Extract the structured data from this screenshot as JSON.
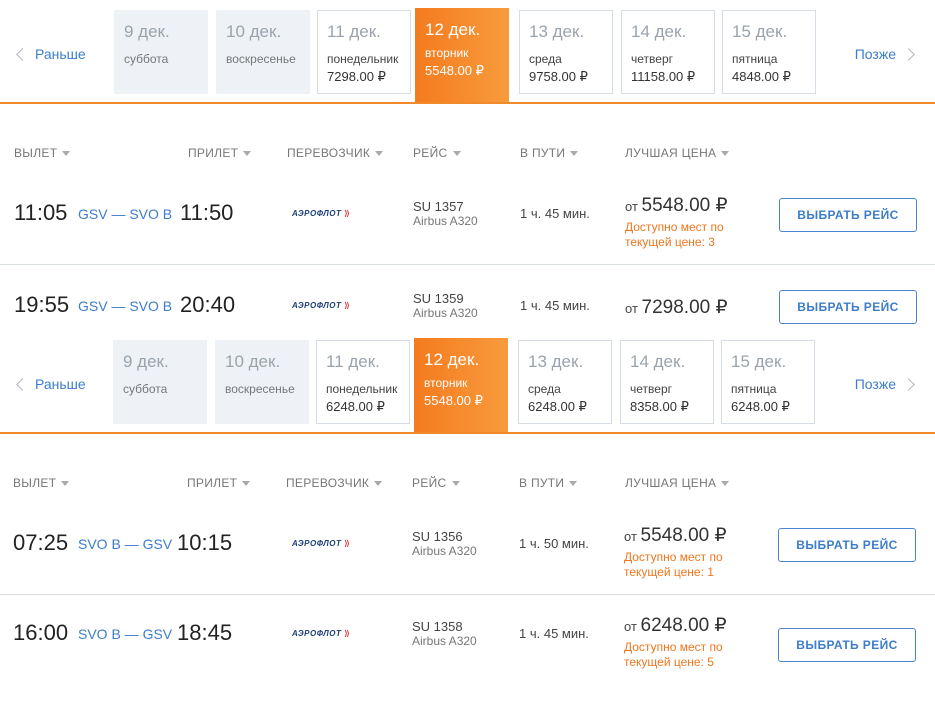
{
  "blocks": [
    {
      "nav": {
        "prev": "Раньше",
        "next": "Позже"
      },
      "dates": [
        {
          "day": "9 дек.",
          "weekday": "суббота",
          "price": ""
        },
        {
          "day": "10 дек.",
          "weekday": "воскресенье",
          "price": ""
        },
        {
          "day": "11 дек.",
          "weekday": "понедельник",
          "price": "7298.00 ₽"
        },
        {
          "day": "12 дек.",
          "weekday": "вторник",
          "price": "5548.00 ₽"
        },
        {
          "day": "13 дек.",
          "weekday": "среда",
          "price": "9758.00 ₽"
        },
        {
          "day": "14 дек.",
          "weekday": "четверг",
          "price": "11158.00 ₽"
        },
        {
          "day": "15 дек.",
          "weekday": "пятница",
          "price": "4848.00 ₽"
        }
      ],
      "headers": {
        "dep": "ВЫЛЕТ",
        "arr": "ПРИЛЕТ",
        "carrier": "ПЕРЕВОЗЧИК",
        "flight": "РЕЙС",
        "duration": "В ПУТИ",
        "best": "ЛУЧШАЯ ЦЕНА"
      },
      "flights": [
        {
          "dep": "11:05",
          "route": "GSV — SVO B",
          "arr": "11:50",
          "airline": "АЭРОФЛОТ",
          "flight": "SU 1357",
          "aircraft": "Airbus A320",
          "duration": "1 ч. 45 мин.",
          "price_prefix": "от",
          "price": "5548.00 ₽",
          "avail": "Доступно мест по текущей цене: 3",
          "button": "ВЫБРАТЬ РЕЙС"
        },
        {
          "dep": "19:55",
          "route": "GSV — SVO B",
          "arr": "20:40",
          "airline": "АЭРОФЛОТ",
          "flight": "SU 1359",
          "aircraft": "Airbus A320",
          "duration": "1 ч. 45 мин.",
          "price_prefix": "от",
          "price": "7298.00 ₽",
          "avail": "",
          "button": "ВЫБРАТЬ РЕЙС"
        }
      ]
    },
    {
      "nav": {
        "prev": "Раньше",
        "next": "Позже"
      },
      "dates": [
        {
          "day": "9 дек.",
          "weekday": "суббота",
          "price": ""
        },
        {
          "day": "10 дек.",
          "weekday": "воскресенье",
          "price": ""
        },
        {
          "day": "11 дек.",
          "weekday": "понедельник",
          "price": "6248.00 ₽"
        },
        {
          "day": "12 дек.",
          "weekday": "вторник",
          "price": "5548.00 ₽"
        },
        {
          "day": "13 дек.",
          "weekday": "среда",
          "price": "6248.00 ₽"
        },
        {
          "day": "14 дек.",
          "weekday": "четверг",
          "price": "8358.00 ₽"
        },
        {
          "day": "15 дек.",
          "weekday": "пятница",
          "price": "6248.00 ₽"
        }
      ],
      "headers": {
        "dep": "ВЫЛЕТ",
        "arr": "ПРИЛЕТ",
        "carrier": "ПЕРЕВОЗЧИК",
        "flight": "РЕЙС",
        "duration": "В ПУТИ",
        "best": "ЛУЧШАЯ ЦЕНА"
      },
      "flights": [
        {
          "dep": "07:25",
          "route": "SVO B — GSV",
          "arr": "10:15",
          "airline": "АЭРОФЛОТ",
          "flight": "SU 1356",
          "aircraft": "Airbus A320",
          "duration": "1 ч. 50 мин.",
          "price_prefix": "от",
          "price": "5548.00 ₽",
          "avail": "Доступно мест по текущей цене: 1",
          "button": "ВЫБРАТЬ РЕЙС"
        },
        {
          "dep": "16:00",
          "route": "SVO B — GSV",
          "arr": "18:45",
          "airline": "АЭРОФЛОТ",
          "flight": "SU 1358",
          "aircraft": "Airbus A320",
          "duration": "1 ч. 45 мин.",
          "price_prefix": "от",
          "price": "6248.00 ₽",
          "avail": "Доступно мест по текущей цене: 5",
          "button": "ВЫБРАТЬ РЕЙС"
        }
      ]
    }
  ],
  "colors": {
    "accent": "#f47b1f",
    "link": "#3d7dca",
    "warning": "#f0761e"
  },
  "icons": {
    "prev": "chevron-left-icon",
    "next": "chevron-right-icon",
    "sort": "sort-caret-icon",
    "airline": "aeroflot-logo"
  }
}
